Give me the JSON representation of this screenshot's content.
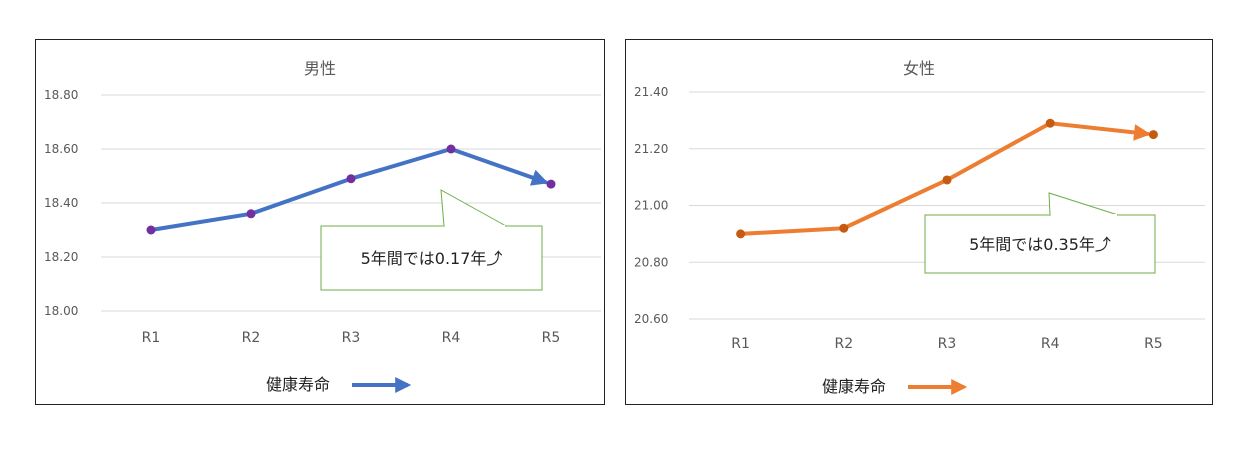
{
  "chart_data": [
    {
      "type": "line",
      "title": "男性",
      "categories": [
        "R1",
        "R2",
        "R3",
        "R4",
        "R5"
      ],
      "series": [
        {
          "name": "健康寿命",
          "values": [
            18.3,
            18.36,
            18.49,
            18.6,
            18.47
          ],
          "color": "#4472C4",
          "marker_color": "#7030A0"
        }
      ],
      "yticks": [
        "18.00",
        "18.20",
        "18.40",
        "18.60",
        "18.80"
      ],
      "ylim": [
        18.0,
        18.8
      ],
      "grid": true,
      "legend": "bottom",
      "annotation": "5年間では0.17年⤴"
    },
    {
      "type": "line",
      "title": "女性",
      "categories": [
        "R1",
        "R2",
        "R3",
        "R4",
        "R5"
      ],
      "series": [
        {
          "name": "健康寿命",
          "values": [
            20.9,
            20.92,
            21.09,
            21.29,
            21.25
          ],
          "color": "#ED7D31",
          "marker_color": "#C55A11"
        }
      ],
      "yticks": [
        "20.60",
        "20.80",
        "21.00",
        "21.20",
        "21.40"
      ],
      "ylim": [
        20.6,
        21.4
      ],
      "grid": true,
      "legend": "bottom",
      "annotation": "5年間では0.35年⤴"
    }
  ]
}
